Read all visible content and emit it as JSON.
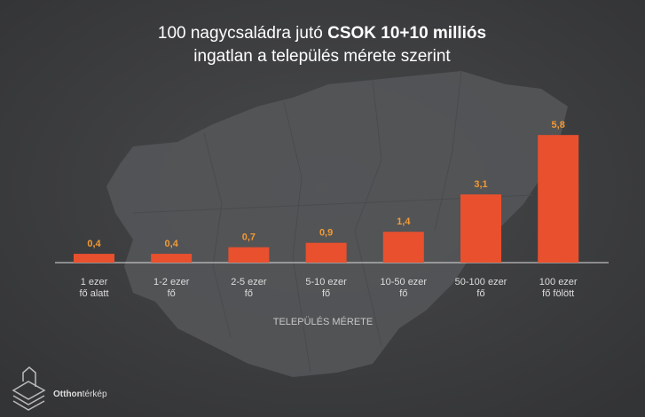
{
  "chart_data": {
    "type": "bar",
    "title": {
      "line1": "100 nagycsaládra jutó",
      "line1_bold": "CSOK 10+10 milliós",
      "line2": "ingatlan a település mérete szerint"
    },
    "categories": [
      [
        "1 ezer",
        "fő alatt"
      ],
      [
        "1-2 ezer",
        "fő"
      ],
      [
        "2-5 ezer",
        "fő"
      ],
      [
        "5-10 ezer",
        "fő"
      ],
      [
        "10-50 ezer",
        "fő"
      ],
      [
        "50-100 ezer",
        "fő"
      ],
      [
        "100 ezer",
        "fő fölött"
      ]
    ],
    "values": [
      0.4,
      0.4,
      0.7,
      0.9,
      1.4,
      3.1,
      5.8
    ],
    "value_labels": [
      "0,4",
      "0,4",
      "0,7",
      "0,9",
      "1,4",
      "3,1",
      "5,8"
    ],
    "color": "#e9502e",
    "x_label": "TELEPÜLÉS MÉRETE"
  },
  "brand": {
    "bold": "Otthon",
    "light": "térkép"
  }
}
